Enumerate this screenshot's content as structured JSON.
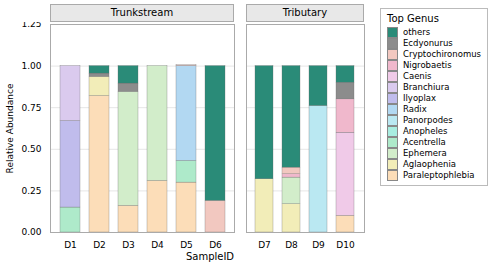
{
  "chart_data": [
    {
      "type": "bar",
      "stacked": true,
      "title": "Trunkstream",
      "ylabel": "Relative Abundance",
      "xlabel": "SampleID",
      "legend": "right",
      "legend_title": "Top Genus",
      "grid": true,
      "categories": [
        "D1",
        "D2",
        "D3",
        "D4",
        "D5",
        "D6"
      ],
      "ylim": [
        0,
        1.25
      ],
      "yticks": [
        {
          "value": 0,
          "label": "0.00"
        },
        {
          "value": 0.25,
          "label": "0.25"
        },
        {
          "value": 0.5,
          "label": "0.50"
        },
        {
          "value": 0.75,
          "label": "0.75"
        },
        {
          "value": 1,
          "label": "1.00"
        },
        {
          "value": 1.25,
          "label": "1.25"
        }
      ],
      "series": [
        {
          "name": "Paraleptophlebia",
          "color": "#FCDDB8",
          "values": [
            0.0,
            0.82,
            0.16,
            0.31,
            0.3,
            0.0
          ]
        },
        {
          "name": "Aglaophenia",
          "color": "#F2EDB8",
          "values": [
            0.0,
            0.115,
            0.0,
            0.0,
            0.0,
            0.0
          ]
        },
        {
          "name": "Ephemera",
          "color": "#D2EDCA",
          "values": [
            0.0,
            0.0,
            0.685,
            0.69,
            0.0,
            0.0
          ]
        },
        {
          "name": "Acentrella",
          "color": "#AEEACA",
          "values": [
            0.15,
            0.0,
            0.0,
            0.0,
            0.13,
            0.0
          ]
        },
        {
          "name": "Anopheles",
          "color": "#A8EDE0",
          "values": [
            0.0,
            0.0,
            0.0,
            0.0,
            0.0,
            0.0
          ]
        },
        {
          "name": "Panorpodes",
          "color": "#BAE8F2",
          "values": [
            0.0,
            0.0,
            0.0,
            0.0,
            0.0,
            0.0
          ]
        },
        {
          "name": "Radix",
          "color": "#B2D8F2",
          "values": [
            0.0,
            0.0,
            0.0,
            0.0,
            0.57,
            0.0
          ]
        },
        {
          "name": "Ilyoplax",
          "color": "#C0BCEC",
          "values": [
            0.52,
            0.0,
            0.0,
            0.0,
            0.0,
            0.0
          ]
        },
        {
          "name": "Branchiura",
          "color": "#DACAEE",
          "values": [
            0.33,
            0.0,
            0.0,
            0.0,
            0.0,
            0.0
          ]
        },
        {
          "name": "Caenis",
          "color": "#F0CAE8",
          "values": [
            0.0,
            0.0,
            0.0,
            0.0,
            0.0,
            0.0
          ]
        },
        {
          "name": "Nigrobaetis",
          "color": "#F0B8CC",
          "values": [
            0.0,
            0.0,
            0.0,
            0.0,
            0.0,
            0.0
          ]
        },
        {
          "name": "Cryptochironomus",
          "color": "#F2C8C0",
          "values": [
            0.0,
            0.0,
            0.0,
            0.0,
            0.005,
            0.19
          ]
        },
        {
          "name": "Ecdyonurus",
          "color": "#8C8C8C",
          "values": [
            0.0,
            0.02,
            0.05,
            0.0,
            0.0,
            0.0
          ]
        },
        {
          "name": "others",
          "color": "#2A8B78",
          "values": [
            0.0,
            0.045,
            0.105,
            0.0,
            0.0,
            0.81
          ]
        }
      ]
    },
    {
      "type": "bar",
      "stacked": true,
      "title": "Tributary",
      "grid": true,
      "tick_labels": "x",
      "categories": [
        "D7",
        "D8",
        "D9",
        "D10"
      ],
      "ylim": [
        0,
        1.25
      ],
      "yticks": [
        {
          "value": 0,
          "label": "0.00"
        },
        {
          "value": 0.25,
          "label": "0.25"
        },
        {
          "value": 0.5,
          "label": "0.50"
        },
        {
          "value": 0.75,
          "label": "0.75"
        },
        {
          "value": 1,
          "label": "1.00"
        },
        {
          "value": 1.25,
          "label": "1.25"
        }
      ],
      "series": [
        {
          "name": "Paraleptophlebia",
          "color": "#FCDDB8",
          "values": [
            0.0,
            0.0,
            0.0,
            0.1
          ]
        },
        {
          "name": "Aglaophenia",
          "color": "#F2EDB8",
          "values": [
            0.32,
            0.17,
            0.0,
            0.0
          ]
        },
        {
          "name": "Ephemera",
          "color": "#D2EDCA",
          "values": [
            0.0,
            0.16,
            0.0,
            0.0
          ]
        },
        {
          "name": "Acentrella",
          "color": "#AEEACA",
          "values": [
            0.0,
            0.0,
            0.0,
            0.0
          ]
        },
        {
          "name": "Anopheles",
          "color": "#A8EDE0",
          "values": [
            0.0,
            0.0,
            0.0,
            0.0
          ]
        },
        {
          "name": "Panorpodes",
          "color": "#BAE8F2",
          "values": [
            0.0,
            0.0,
            0.76,
            0.0
          ]
        },
        {
          "name": "Radix",
          "color": "#B2D8F2",
          "values": [
            0.0,
            0.0,
            0.0,
            0.0
          ]
        },
        {
          "name": "Ilyoplax",
          "color": "#C0BCEC",
          "values": [
            0.0,
            0.0,
            0.0,
            0.0
          ]
        },
        {
          "name": "Branchiura",
          "color": "#DACAEE",
          "values": [
            0.0,
            0.0,
            0.0,
            0.0
          ]
        },
        {
          "name": "Caenis",
          "color": "#F0CAE8",
          "values": [
            0.0,
            0.0,
            0.0,
            0.5
          ]
        },
        {
          "name": "Nigrobaetis",
          "color": "#F0B8CC",
          "values": [
            0.0,
            0.02,
            0.0,
            0.2
          ]
        },
        {
          "name": "Cryptochironomus",
          "color": "#F2C8C0",
          "values": [
            0.0,
            0.04,
            0.0,
            0.0
          ]
        },
        {
          "name": "Ecdyonurus",
          "color": "#8C8C8C",
          "values": [
            0.0,
            0.0,
            0.0,
            0.1
          ]
        },
        {
          "name": "others",
          "color": "#2A8B78",
          "values": [
            0.68,
            0.61,
            0.24,
            0.1
          ]
        }
      ]
    }
  ]
}
